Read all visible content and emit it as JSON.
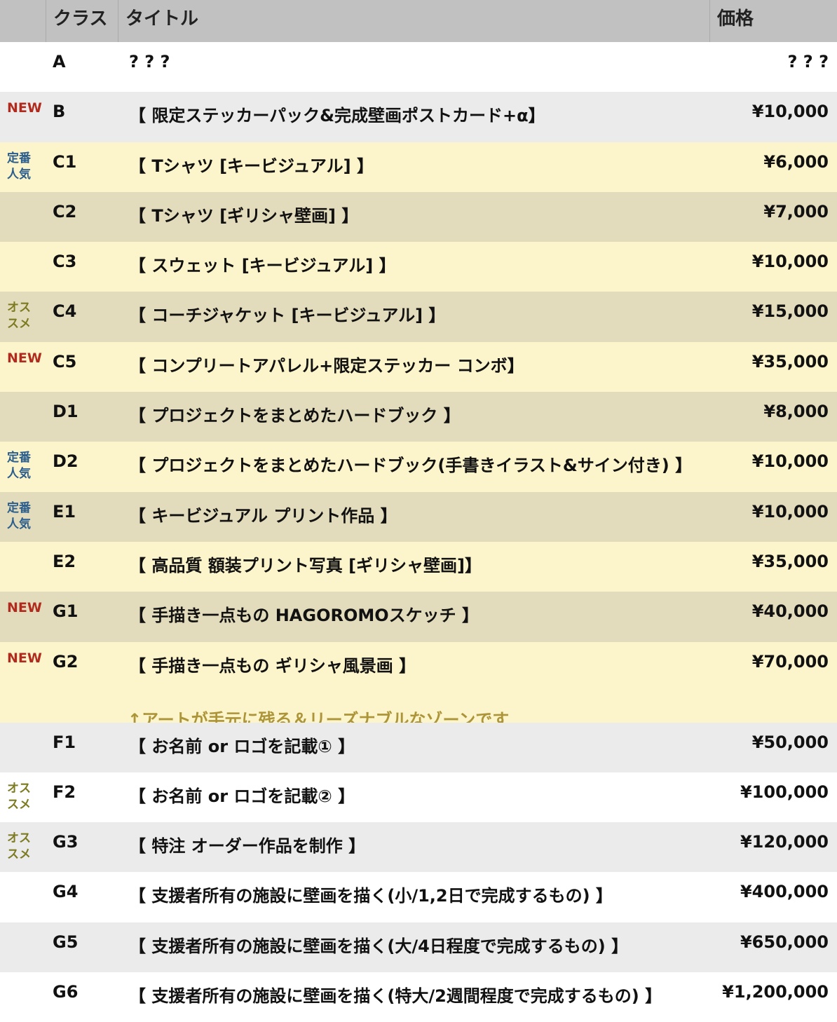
{
  "header": {
    "badge": "",
    "class": "クラス",
    "title": "タイトル",
    "price": "価格"
  },
  "colors": {
    "new": "#b02a1e",
    "standard": "#2a5d8c",
    "recommended": "#7d7b22",
    "note": "#ac9438"
  },
  "rows": [
    {
      "badge": "",
      "badge_type": "",
      "class": "A",
      "title": "? ? ?",
      "price": "? ? ?",
      "bg": "w"
    },
    {
      "badge": "NEW",
      "badge_type": "new",
      "class": "B",
      "title": "【 限定ステッカーパック&完成壁画ポストカード+α】",
      "price": "¥10,000",
      "bg": "g"
    },
    {
      "badge": "定番\n人気",
      "badge_type": "std",
      "class": "C1",
      "title": "【 Tシャツ [キービジュアル] 】",
      "price": "¥6,000",
      "bg": "y"
    },
    {
      "badge": "",
      "badge_type": "",
      "class": "C2",
      "title": "【 Tシャツ [ギリシャ壁画] 】",
      "price": "¥7,000",
      "bg": "t"
    },
    {
      "badge": "",
      "badge_type": "",
      "class": "C3",
      "title": "【 スウェット [キービジュアル] 】",
      "price": "¥10,000",
      "bg": "y"
    },
    {
      "badge": "オス\nスメ",
      "badge_type": "rec",
      "class": "C4",
      "title": "【 コーチジャケット [キービジュアル] 】",
      "price": "¥15,000",
      "bg": "t"
    },
    {
      "badge": "NEW",
      "badge_type": "new",
      "class": "C5",
      "title": "【 コンプリートアパレル+限定ステッカー コンボ】",
      "price": "¥35,000",
      "bg": "y"
    },
    {
      "badge": "",
      "badge_type": "",
      "class": "D1",
      "title": "【 プロジェクトをまとめたハードブック 】",
      "price": "¥8,000",
      "bg": "t"
    },
    {
      "badge": "定番\n人気",
      "badge_type": "std",
      "class": "D2",
      "title": "【 プロジェクトをまとめたハードブック(手書きイラスト&サイン付き) 】",
      "price": "¥10,000",
      "bg": "y"
    },
    {
      "badge": "定番\n人気",
      "badge_type": "std",
      "class": "E1",
      "title": "【 キービジュアル プリント作品 】",
      "price": "¥10,000",
      "bg": "t"
    },
    {
      "badge": "",
      "badge_type": "",
      "class": "E2",
      "title": "【 高品質 額装プリント写真 [ギリシャ壁画]】",
      "price": "¥35,000",
      "bg": "y"
    },
    {
      "badge": "NEW",
      "badge_type": "new",
      "class": "G1",
      "title": "【 手描き一点もの HAGOROMOスケッチ 】",
      "price": "¥40,000",
      "bg": "t"
    },
    {
      "badge": "NEW",
      "badge_type": "new",
      "class": "G2",
      "title": "【 手描き一点もの ギリシャ風景画 】",
      "price": "¥70,000",
      "bg": "y",
      "note": "↑アートが手元に残る＆リーズナブルなゾーンです"
    },
    {
      "badge": "",
      "badge_type": "",
      "class": "F1",
      "title": "【 お名前 or ロゴを記載① 】",
      "price": "¥50,000",
      "bg": "g"
    },
    {
      "badge": "オス\nスメ",
      "badge_type": "rec",
      "class": "F2",
      "title": "【 お名前 or ロゴを記載② 】",
      "price": "¥100,000",
      "bg": "w"
    },
    {
      "badge": "オス\nスメ",
      "badge_type": "rec",
      "class": "G3",
      "title": "【 特注 オーダー作品を制作 】",
      "price": "¥120,000",
      "bg": "g"
    },
    {
      "badge": "",
      "badge_type": "",
      "class": "G4",
      "title": "【 支援者所有の施設に壁画を描く(小/1,2日で完成するもの) 】",
      "price": "¥400,000",
      "bg": "w"
    },
    {
      "badge": "",
      "badge_type": "",
      "class": "G5",
      "title": "【 支援者所有の施設に壁画を描く(大/4日程度で完成するもの) 】",
      "price": "¥650,000",
      "bg": "g"
    },
    {
      "badge": "",
      "badge_type": "",
      "class": "G6",
      "title": "【 支援者所有の施設に壁画を描く(特大/2週間程度で完成するもの) 】",
      "price": "¥1,200,000",
      "bg": "w"
    }
  ]
}
